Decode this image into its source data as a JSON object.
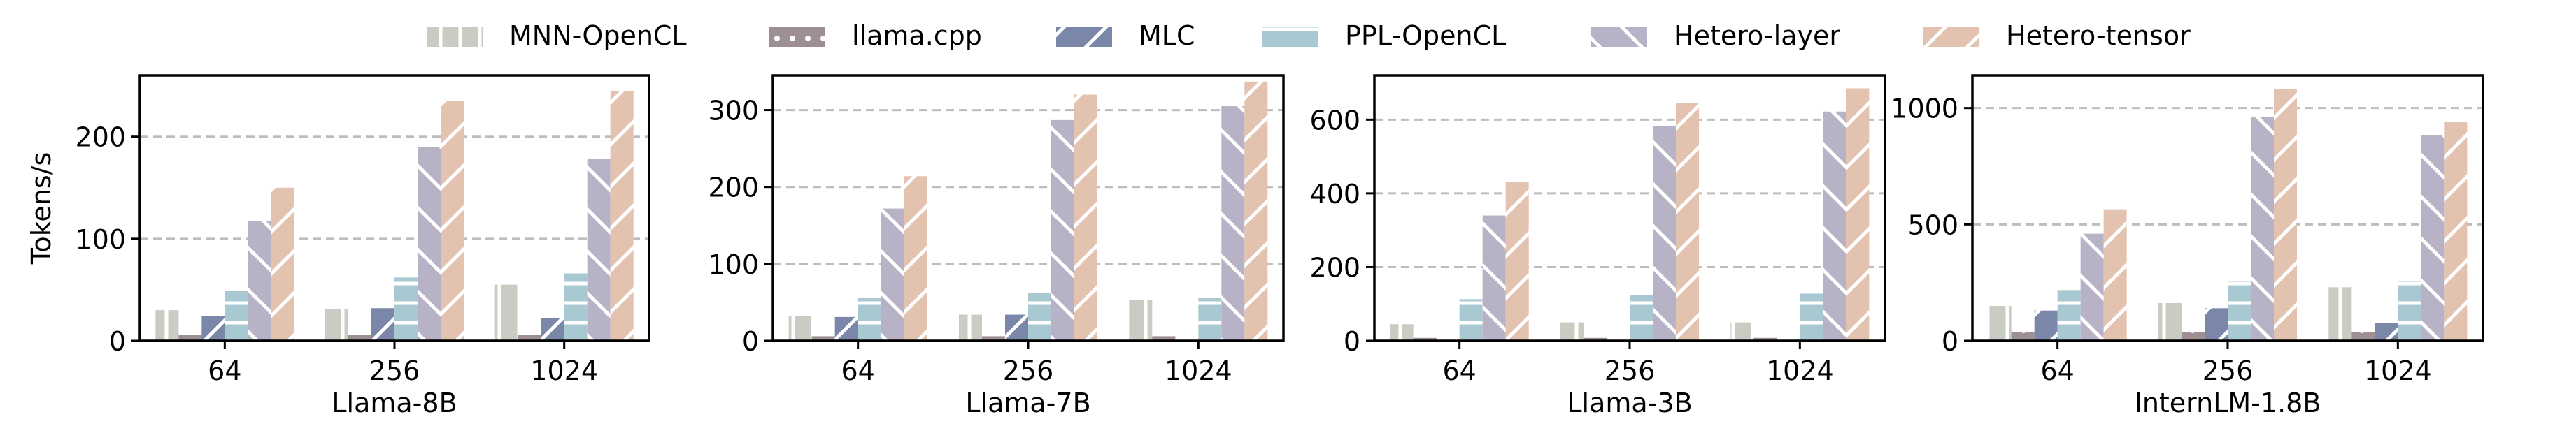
{
  "legend": {
    "items": [
      {
        "label": "MNN-OpenCL",
        "color": "#c9ccc2",
        "hatch": "vline"
      },
      {
        "label": "llama.cpp",
        "color": "#9e8f93",
        "hatch": "dot"
      },
      {
        "label": "MLC",
        "color": "#7a87a8",
        "hatch": "slash"
      },
      {
        "label": "PPL-OpenCL",
        "color": "#a8c9d1",
        "hatch": "hline"
      },
      {
        "label": "Hetero-layer",
        "color": "#b7b2c6",
        "hatch": "backslash"
      },
      {
        "label": "Hetero-tensor",
        "color": "#e3c2b0",
        "hatch": "slash"
      }
    ]
  },
  "chart_data": [
    {
      "type": "bar",
      "xlabel": "Llama-8B",
      "ylabel": "Tokens/s",
      "categories": [
        "64",
        "256",
        "1024"
      ],
      "ylim": [
        0,
        260
      ],
      "yticks": [
        0,
        100,
        200
      ],
      "grid": "horizontal dashed",
      "series": [
        {
          "name": "MNN-OpenCL",
          "values": [
            30,
            31,
            55
          ]
        },
        {
          "name": "llama.cpp",
          "values": [
            6,
            6,
            6
          ]
        },
        {
          "name": "MLC",
          "values": [
            24,
            32,
            22
          ]
        },
        {
          "name": "PPL-OpenCL",
          "values": [
            49,
            62,
            66
          ]
        },
        {
          "name": "Hetero-layer",
          "values": [
            117,
            190,
            178
          ]
        },
        {
          "name": "Hetero-tensor",
          "values": [
            150,
            235,
            245
          ]
        }
      ]
    },
    {
      "type": "bar",
      "xlabel": "Llama-7B",
      "ylabel": "",
      "categories": [
        "64",
        "256",
        "1024"
      ],
      "ylim": [
        0,
        345
      ],
      "yticks": [
        0,
        100,
        200,
        300
      ],
      "grid": "horizontal dashed",
      "series": [
        {
          "name": "MNN-OpenCL",
          "values": [
            32,
            34,
            53
          ]
        },
        {
          "name": "llama.cpp",
          "values": [
            6,
            6,
            6
          ]
        },
        {
          "name": "MLC",
          "values": [
            31,
            34,
            0
          ]
        },
        {
          "name": "PPL-OpenCL",
          "values": [
            56,
            62,
            56
          ]
        },
        {
          "name": "Hetero-layer",
          "values": [
            172,
            287,
            305
          ]
        },
        {
          "name": "Hetero-tensor",
          "values": [
            214,
            320,
            337
          ]
        }
      ]
    },
    {
      "type": "bar",
      "xlabel": "Llama-3B",
      "ylabel": "",
      "categories": [
        "64",
        "256",
        "1024"
      ],
      "ylim": [
        0,
        720
      ],
      "yticks": [
        0,
        200,
        400,
        600
      ],
      "grid": "horizontal dashed",
      "series": [
        {
          "name": "MNN-OpenCL",
          "values": [
            45,
            50,
            50
          ]
        },
        {
          "name": "llama.cpp",
          "values": [
            8,
            8,
            8
          ]
        },
        {
          "name": "MLC",
          "values": [
            0,
            0,
            0
          ]
        },
        {
          "name": "PPL-OpenCL",
          "values": [
            113,
            125,
            128
          ]
        },
        {
          "name": "Hetero-layer",
          "values": [
            340,
            583,
            622
          ]
        },
        {
          "name": "Hetero-tensor",
          "values": [
            430,
            645,
            685
          ]
        }
      ]
    },
    {
      "type": "bar",
      "xlabel": "InternLM-1.8B",
      "ylabel": "",
      "categories": [
        "64",
        "256",
        "1024"
      ],
      "ylim": [
        0,
        1140
      ],
      "yticks": [
        0,
        500,
        1000
      ],
      "grid": "horizontal dashed",
      "series": [
        {
          "name": "MNN-OpenCL",
          "values": [
            150,
            162,
            230
          ]
        },
        {
          "name": "llama.cpp",
          "values": [
            38,
            38,
            38
          ]
        },
        {
          "name": "MLC",
          "values": [
            130,
            140,
            75
          ]
        },
        {
          "name": "PPL-OpenCL",
          "values": [
            218,
            258,
            255
          ]
        },
        {
          "name": "Hetero-layer",
          "values": [
            460,
            960,
            885
          ]
        },
        {
          "name": "Hetero-tensor",
          "values": [
            565,
            1080,
            940
          ]
        }
      ]
    }
  ]
}
